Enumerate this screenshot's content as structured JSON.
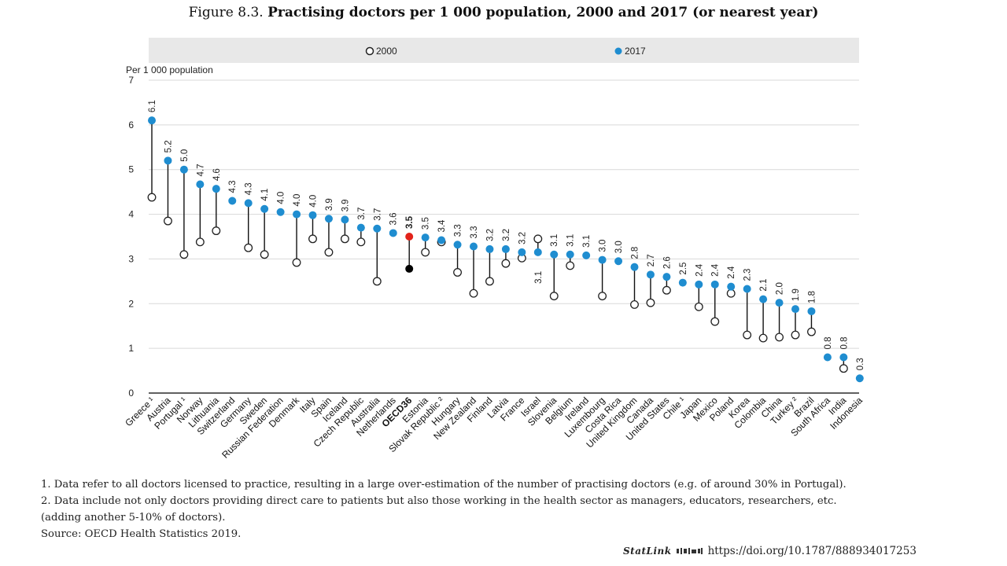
{
  "figure": {
    "number": "Figure 8.3.",
    "title": "Practising doctors per 1 000 population, 2000 and 2017 (or nearest year)"
  },
  "notes": [
    "1. Data refer to all doctors licensed to practice, resulting in a large over-estimation of the number of practising doctors (e.g. of around 30% in Portugal).",
    "2. Data include not only doctors providing direct care to patients but also those working in the health sector as managers, educators, researchers, etc.",
    "(adding another 5-10% of doctors).",
    "Source: OECD Health Statistics 2019."
  ],
  "statlink": {
    "logo": "StatLink",
    "url": "https://doi.org/10.1787/888934017253"
  },
  "colors": {
    "series_2017": "#1f8dd0",
    "series_2000": "#ffffff",
    "highlight_2017": "#e2231a",
    "highlight_2000": "#000000",
    "legend_bg": "#e8e8e8",
    "grid": "#d9d9d9"
  },
  "chart_data": {
    "type": "scatter",
    "ylabel": "Per 1 000 population",
    "ylim": [
      0,
      7
    ],
    "yticks": [
      0,
      1,
      2,
      3,
      4,
      5,
      6,
      7
    ],
    "grid": true,
    "legend_position": "top",
    "highlight_category": "OECD36",
    "categories": [
      "Greece ¹",
      "Austria",
      "Portugal ¹",
      "Norway",
      "Lithuania",
      "Switzerland",
      "Germany",
      "Sweden",
      "Russian Federation",
      "Denmark",
      "Italy",
      "Spain",
      "Iceland",
      "Czech Republic",
      "Australia",
      "Netherlands",
      "OECD36",
      "Estonia",
      "Slovak Republic ²",
      "Hungary",
      "New Zealand",
      "Finland",
      "Latvia",
      "France",
      "Israel",
      "Slovenia",
      "Belgium",
      "Ireland",
      "Luxembourg",
      "Costa Rica",
      "United Kingdom",
      "Canada",
      "United States",
      "Chile ¹",
      "Japan",
      "Mexico",
      "Poland",
      "Korea",
      "Colombia",
      "China",
      "Turkey ²",
      "Brazil",
      "South Africa",
      "India",
      "Indonesia"
    ],
    "series": [
      {
        "name": "2000",
        "values": [
          4.38,
          3.85,
          3.1,
          3.38,
          3.63,
          null,
          3.25,
          3.1,
          null,
          2.92,
          3.45,
          3.15,
          3.45,
          3.38,
          2.5,
          null,
          2.78,
          3.15,
          3.38,
          2.7,
          2.23,
          2.5,
          2.9,
          3.02,
          3.45,
          2.17,
          2.85,
          null,
          2.17,
          null,
          1.98,
          2.02,
          2.3,
          null,
          1.93,
          1.6,
          2.23,
          1.3,
          1.23,
          1.25,
          1.3,
          1.37,
          null,
          0.55,
          null
        ]
      },
      {
        "name": "2017",
        "values": [
          6.1,
          5.2,
          5.0,
          4.67,
          4.57,
          4.3,
          4.25,
          4.12,
          4.05,
          4.0,
          3.98,
          3.9,
          3.88,
          3.7,
          3.68,
          3.58,
          3.5,
          3.48,
          3.42,
          3.32,
          3.28,
          3.22,
          3.22,
          3.15,
          3.15,
          3.1,
          3.1,
          3.08,
          2.98,
          2.95,
          2.82,
          2.65,
          2.6,
          2.47,
          2.43,
          2.43,
          2.38,
          2.33,
          2.1,
          2.02,
          1.88,
          1.83,
          0.8,
          0.8,
          0.33
        ]
      }
    ],
    "value_labels": [
      "6.1",
      "5.2",
      "5.0",
      "4.7",
      "4.6",
      "4.3",
      "4.3",
      "4.1",
      "4.0",
      "4.0",
      "4.0",
      "3.9",
      "3.9",
      "3.7",
      "3.7",
      "3.6",
      "3.5",
      "3.5",
      "3.4",
      "3.3",
      "3.3",
      "3.2",
      "3.2",
      "3.2",
      "3.1",
      "3.1",
      "3.1",
      "3.1",
      "3.0",
      "3.0",
      "2.8",
      "2.7",
      "2.6",
      "2.5",
      "2.4",
      "2.4",
      "2.4",
      "2.3",
      "2.1",
      "2.0",
      "1.9",
      "1.8",
      "0.8",
      "0.8",
      "0.3"
    ]
  }
}
